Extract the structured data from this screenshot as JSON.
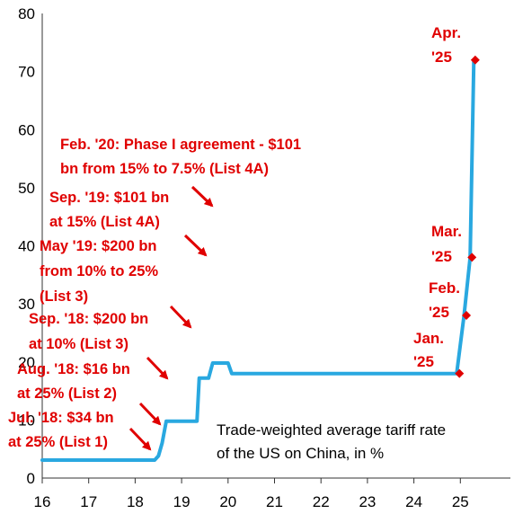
{
  "chart_data": {
    "type": "line",
    "title": "",
    "xlabel": "",
    "ylabel": "",
    "xlim": [
      2016,
      2026
    ],
    "ylim": [
      0,
      80
    ],
    "x_ticks": [
      {
        "value": 2016,
        "label": "16"
      },
      {
        "value": 2017,
        "label": "17"
      },
      {
        "value": 2018,
        "label": "18"
      },
      {
        "value": 2019,
        "label": "19"
      },
      {
        "value": 2020,
        "label": "20"
      },
      {
        "value": 2021,
        "label": "21"
      },
      {
        "value": 2022,
        "label": "22"
      },
      {
        "value": 2023,
        "label": "23"
      },
      {
        "value": 2024,
        "label": "24"
      },
      {
        "value": 2025,
        "label": "25"
      }
    ],
    "y_ticks": [
      0,
      10,
      20,
      30,
      40,
      50,
      60,
      70,
      80
    ],
    "grid": false,
    "series_color": "#29a8e0",
    "annotation_color": "#e00000",
    "caption": [
      "Trade-weighted average tariff rate",
      "of the US on China, in %"
    ],
    "series": [
      {
        "points": [
          [
            2016.0,
            3.1
          ],
          [
            2018.42,
            3.1
          ],
          [
            2018.5,
            3.8
          ],
          [
            2018.58,
            6.0
          ],
          [
            2018.67,
            9.8
          ],
          [
            2019.33,
            9.8
          ],
          [
            2019.38,
            17.2
          ],
          [
            2019.58,
            17.2
          ],
          [
            2019.67,
            19.8
          ],
          [
            2020.0,
            19.8
          ],
          [
            2020.08,
            18.0
          ],
          [
            2024.92,
            18.0
          ],
          [
            2025.08,
            28.0
          ],
          [
            2025.21,
            38.0
          ],
          [
            2025.29,
            72.0
          ]
        ]
      }
    ],
    "markers": [
      {
        "x": 2024.98,
        "y": 18.0
      },
      {
        "x": 2025.13,
        "y": 28.0
      },
      {
        "x": 2025.25,
        "y": 38.0
      },
      {
        "x": 2025.32,
        "y": 72.0
      }
    ],
    "annotations": [
      {
        "lines": [
          "Feb. '20: Phase I agreement - $101",
          "bn from 15% to 7.5% (List 4A)"
        ]
      },
      {
        "lines": [
          "Sep. '19: $101 bn",
          "at 15% (List 4A)"
        ]
      },
      {
        "lines": [
          "May '19: $200 bn",
          "from 10% to 25%",
          "(List 3)"
        ]
      },
      {
        "lines": [
          "Sep. '18: $200 bn",
          "at 10% (List 3)"
        ]
      },
      {
        "lines": [
          "Aug. '18: $16 bn",
          "at 25% (List 2)"
        ]
      },
      {
        "lines": [
          "Jul. '18: $34 bn",
          "at 25% (List 1)"
        ]
      }
    ],
    "marker_labels": [
      {
        "lines": [
          "Jan.",
          "'25"
        ]
      },
      {
        "lines": [
          "Feb.",
          "'25"
        ]
      },
      {
        "lines": [
          "Mar.",
          "'25"
        ]
      },
      {
        "lines": [
          "Apr.",
          "'25"
        ]
      }
    ]
  }
}
